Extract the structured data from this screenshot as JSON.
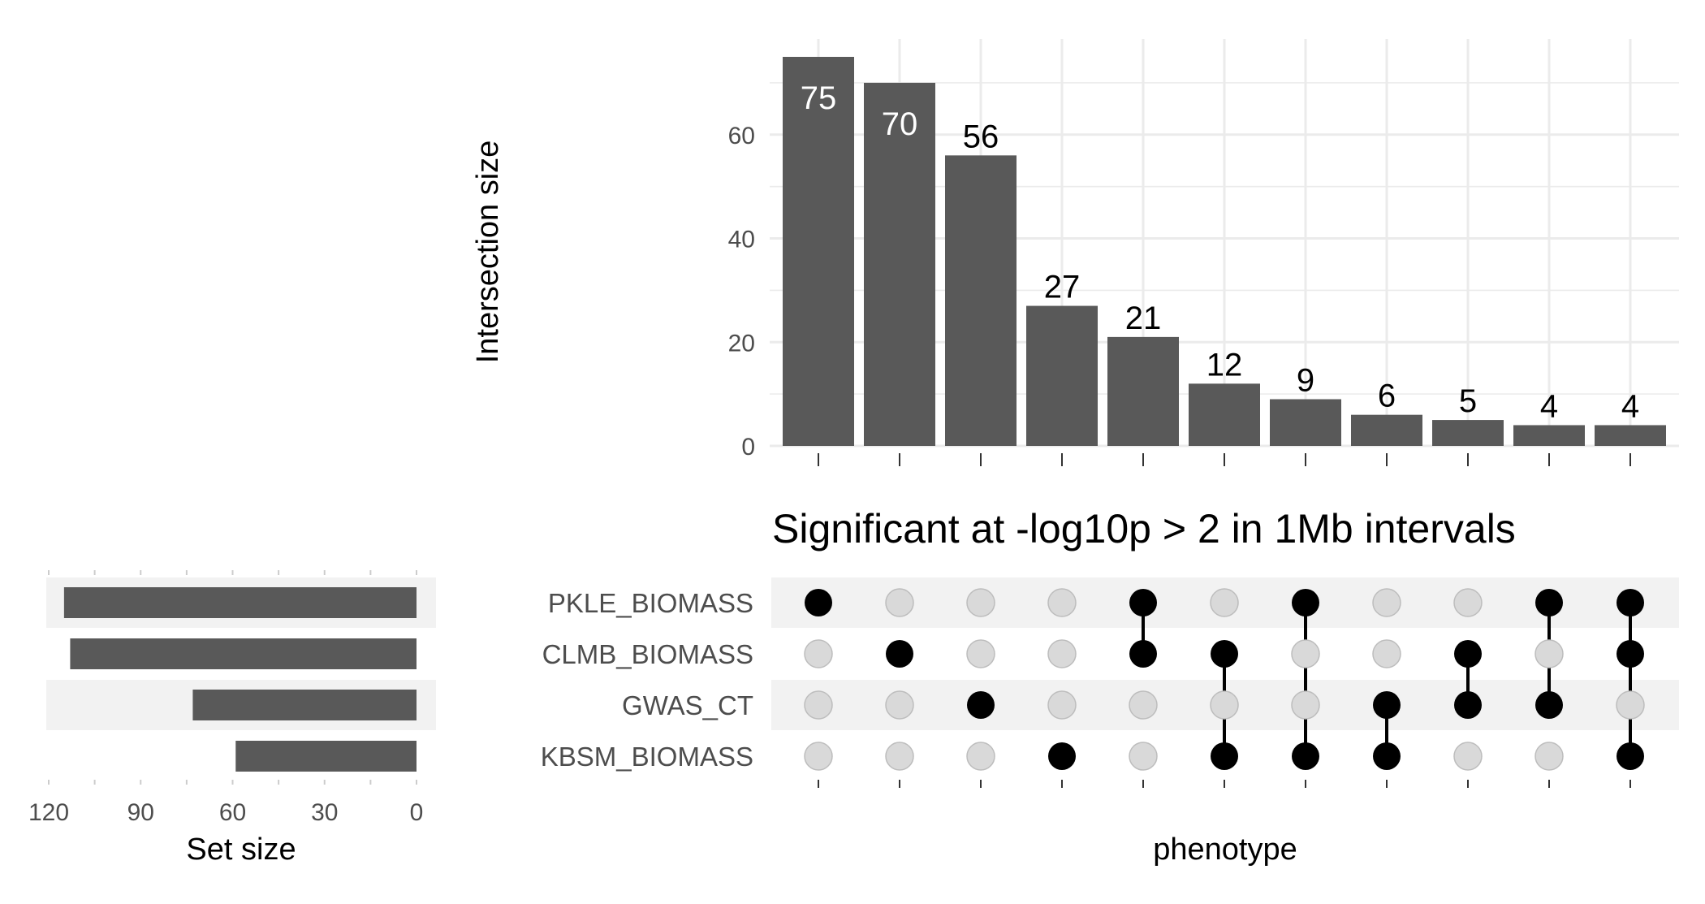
{
  "chart_data": {
    "type": "bar",
    "title": "Significant at -log10p > 2 in 1Mb intervals",
    "xlabel": "phenotype",
    "ylabel": "Intersection size",
    "ylim": [
      0,
      75
    ],
    "yticks": [
      "0",
      "20",
      "40",
      "60"
    ],
    "bar_color": "#595959",
    "values": [
      75,
      70,
      56,
      27,
      21,
      12,
      9,
      6,
      5,
      4,
      4
    ],
    "value_labels": [
      "75",
      "70",
      "56",
      "27",
      "21",
      "12",
      "9",
      "6",
      "5",
      "4",
      "4"
    ],
    "sets": [
      "PKLE_BIOMASS",
      "CLMB_BIOMASS",
      "GWAS_CT",
      "KBSM_BIOMASS"
    ],
    "membership": [
      [
        0
      ],
      [
        1
      ],
      [
        2
      ],
      [
        3
      ],
      [
        0,
        1
      ],
      [
        1,
        3
      ],
      [
        0,
        3
      ],
      [
        2,
        3
      ],
      [
        1,
        2
      ],
      [
        0,
        2
      ],
      [
        0,
        1,
        3
      ]
    ],
    "set_sizes": {
      "xlabel": "Set size",
      "xticks": [
        "120",
        "90",
        "60",
        "30",
        "0"
      ],
      "xlim": [
        0,
        120
      ],
      "values": [
        115,
        113,
        73,
        59
      ]
    },
    "colors": {
      "active_dot": "#000000",
      "inactive_dot": "#d9d9d9",
      "stripe": "#f2f2f2",
      "grid": "#ebebeb"
    }
  }
}
